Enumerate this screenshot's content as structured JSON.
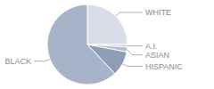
{
  "chart_data": {
    "type": "pie",
    "categories": [
      "WHITE",
      "A.I.",
      "ASIAN",
      "HISPANIC",
      "BLACK"
    ],
    "values": [
      25,
      1,
      2,
      10,
      62
    ],
    "colors": [
      "#d8dde7",
      "#c3cbd9",
      "#b3bfd1",
      "#8d9db6",
      "#a7b3c7"
    ]
  }
}
